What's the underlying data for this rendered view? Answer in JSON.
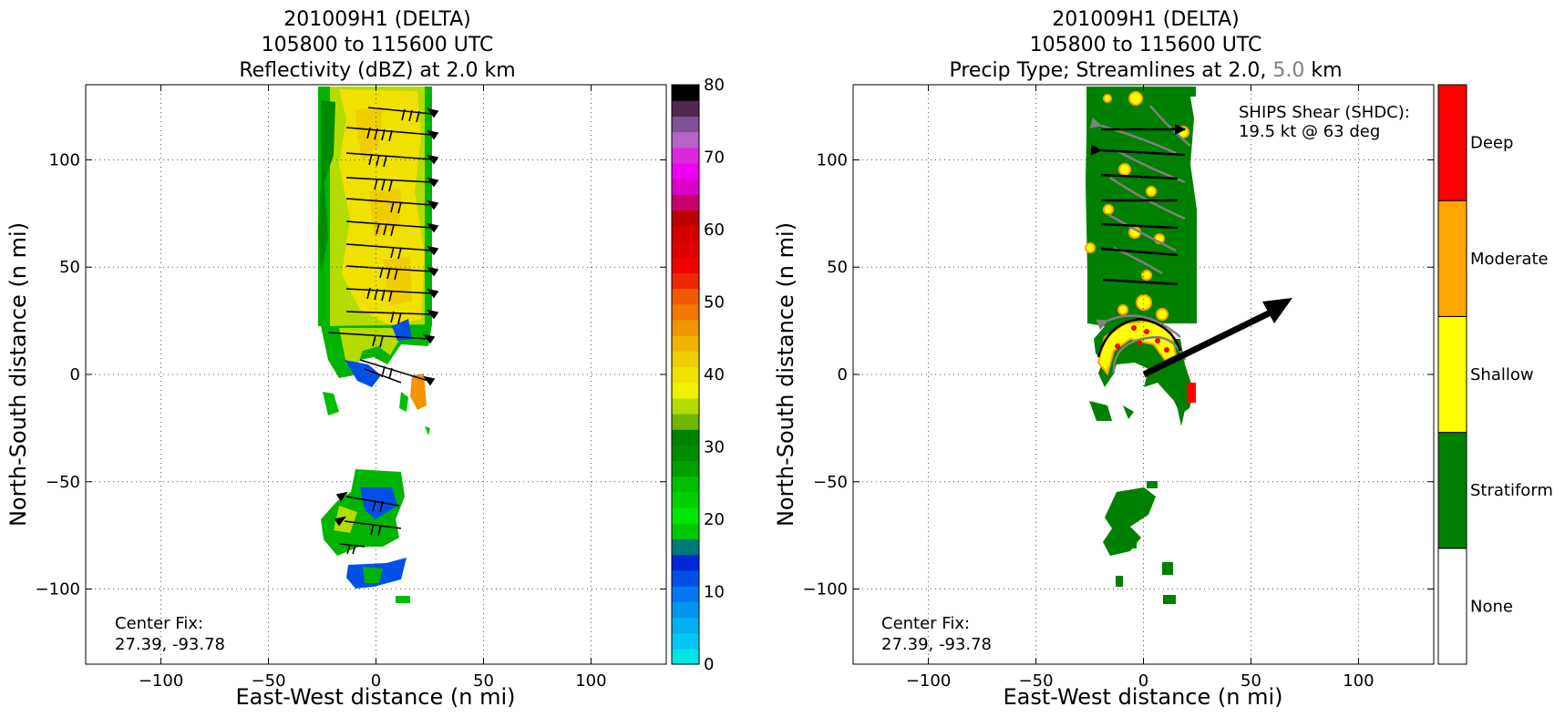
{
  "chart_data": [
    {
      "type": "heatmap",
      "title_lines": [
        "201009H1 (DELTA)",
        "105800 to 115600 UTC",
        "Reflectivity (dBZ) at 2.0 km"
      ],
      "xlabel": "East-West distance (n mi)",
      "ylabel": "North-South distance (n mi)",
      "xlim": [
        -135,
        135
      ],
      "ylim": [
        -135,
        135
      ],
      "xticks": [
        -100,
        -50,
        0,
        50,
        100
      ],
      "yticks": [
        -100,
        -50,
        0,
        50,
        100
      ],
      "xtick_labels": [
        "−100",
        "−50",
        "0",
        "50",
        "100"
      ],
      "ytick_labels": [
        "−100",
        "−50",
        "0",
        "50",
        "100"
      ],
      "grid": true,
      "annotation": [
        "Center Fix:",
        "27.39, -93.78"
      ],
      "colorbar": {
        "label_values": [
          "0",
          "10",
          "20",
          "30",
          "40",
          "50",
          "60",
          "70",
          "80"
        ],
        "range": [
          0,
          80
        ],
        "step": 2.5,
        "colors": [
          "#00e5e5",
          "#00c8f0",
          "#00b0f0",
          "#0096f0",
          "#0078f0",
          "#0050e8",
          "#0028d8",
          "#007878",
          "#00c800",
          "#00e600",
          "#00d200",
          "#00be00",
          "#00a000",
          "#008c00",
          "#008200",
          "#6eb400",
          "#b4dc00",
          "#f0f000",
          "#f0e100",
          "#f0cd00",
          "#f0b400",
          "#f09600",
          "#f07800",
          "#f05a00",
          "#f02800",
          "#f00000",
          "#e00000",
          "#d20000",
          "#be0000",
          "#c8006e",
          "#dc00c8",
          "#f000f0",
          "#dc28dc",
          "#b464c8",
          "#825096",
          "#502850",
          "#000000"
        ]
      },
      "barbs": "present"
    },
    {
      "type": "heatmap",
      "title_lines": [
        "201009H1 (DELTA)",
        "105800 to 115600 UTC"
      ],
      "title_line3_parts": [
        "Precip Type; Streamlines at 2.0, ",
        "5.0",
        " km"
      ],
      "xlabel": "East-West distance (n mi)",
      "ylabel": "North-South distance (n mi)",
      "xlim": [
        -135,
        135
      ],
      "ylim": [
        -135,
        135
      ],
      "xticks": [
        -100,
        -50,
        0,
        50,
        100
      ],
      "yticks": [
        -100,
        -50,
        0,
        50,
        100
      ],
      "xtick_labels": [
        "−100",
        "−50",
        "0",
        "50",
        "100"
      ],
      "ytick_labels": [
        "−100",
        "−50",
        "0",
        "50",
        "100"
      ],
      "grid": true,
      "annotation": [
        "Center Fix:",
        "27.39, -93.78"
      ],
      "shear_text": [
        "SHIPS Shear (SHDC):",
        "19.5 kt @ 63 deg"
      ],
      "shear": {
        "speed_kt": 19.5,
        "direction_deg": 63
      },
      "categories": [
        "None",
        "Stratiform",
        "Shallow",
        "Moderate",
        "Deep"
      ],
      "category_colors": [
        "#ffffff",
        "#008000",
        "#ffff00",
        "#ffa500",
        "#ff0000"
      ],
      "streamline_colors": {
        "2.0 km": "#000000",
        "5.0 km": "#808080"
      }
    }
  ]
}
